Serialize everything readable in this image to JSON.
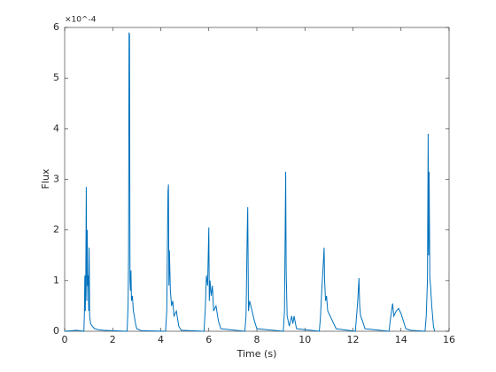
{
  "chart_data": {
    "type": "line",
    "xlabel": "Time (s)",
    "ylabel": "Flux",
    "y_exponent_label": "×10^-4",
    "x": [
      0,
      0.5,
      0.8,
      0.82,
      0.84,
      0.86,
      0.88,
      0.9,
      0.92,
      0.94,
      0.96,
      0.98,
      1.0,
      1.02,
      1.04,
      1.08,
      1.15,
      1.25,
      1.4,
      1.6,
      2.0,
      2.6,
      2.64,
      2.66,
      2.68,
      2.7,
      2.72,
      2.74,
      2.76,
      2.78,
      2.82,
      2.86,
      2.9,
      2.95,
      3.0,
      3.2,
      4.2,
      4.25,
      4.3,
      4.32,
      4.34,
      4.36,
      4.4,
      4.45,
      4.5,
      4.55,
      4.65,
      4.75,
      4.85,
      5.8,
      5.85,
      5.9,
      5.95,
      6.0,
      6.02,
      6.05,
      6.1,
      6.15,
      6.2,
      6.3,
      6.4,
      6.5,
      7.5,
      7.55,
      7.6,
      7.62,
      7.65,
      7.7,
      7.75,
      7.8,
      7.9,
      8.0,
      9.1,
      9.15,
      9.2,
      9.22,
      9.26,
      9.35,
      9.45,
      9.5,
      9.55,
      9.65,
      10.6,
      10.65,
      10.7,
      10.75,
      10.8,
      10.82,
      10.86,
      10.9,
      10.95,
      11.05,
      11.15,
      11.3,
      12.1,
      12.15,
      12.2,
      12.25,
      12.28,
      12.32,
      12.4,
      12.5,
      13.5,
      13.55,
      13.65,
      13.7,
      13.8,
      13.9,
      14.0,
      14.1,
      14.2,
      14.4,
      15.0,
      15.05,
      15.1,
      15.13,
      15.15,
      15.17,
      15.2,
      15.23,
      15.28,
      15.35,
      15.4
    ],
    "values": [
      0,
      0.02,
      0,
      0.3,
      1.1,
      0.4,
      1.15,
      2.85,
      0.6,
      2.0,
      0.9,
      1.1,
      0.4,
      1.65,
      0.3,
      0.15,
      0.1,
      0.05,
      0.03,
      0.02,
      0.01,
      0,
      0.5,
      1.5,
      5.9,
      5.85,
      1.0,
      0.8,
      1.2,
      0.6,
      0.7,
      0.4,
      0.3,
      0.15,
      0.05,
      0.01,
      0,
      0.4,
      2.75,
      2.9,
      0.9,
      1.6,
      0.8,
      0.5,
      0.6,
      0.3,
      0.4,
      0.1,
      0.02,
      0,
      0.4,
      1.1,
      0.9,
      2.05,
      0.6,
      1.0,
      0.7,
      0.9,
      0.4,
      0.5,
      0.2,
      0.05,
      0,
      0.3,
      2.0,
      2.45,
      0.4,
      0.6,
      0.5,
      0.4,
      0.2,
      0.05,
      0,
      0.4,
      3.15,
      1.2,
      0.3,
      0.1,
      0.3,
      0.15,
      0.3,
      0.05,
      0,
      0.3,
      0.8,
      1.2,
      1.65,
      1.0,
      0.6,
      0.7,
      0.4,
      0.3,
      0.2,
      0.05,
      0,
      0.3,
      0.6,
      1.05,
      0.5,
      0.3,
      0.2,
      0.05,
      0,
      0.2,
      0.55,
      0.3,
      0.4,
      0.45,
      0.35,
      0.2,
      0.05,
      0.02,
      0,
      0.3,
      1.0,
      3.9,
      1.5,
      3.15,
      1.05,
      0.9,
      0.5,
      0.1,
      0
    ],
    "color": "#0072bd",
    "xlim": [
      0,
      16
    ],
    "xticks": [
      0,
      2,
      4,
      6,
      8,
      10,
      12,
      14,
      16
    ],
    "ylim": [
      0,
      6
    ],
    "yticks": [
      0,
      1,
      2,
      3,
      4,
      5,
      6
    ],
    "grid": false
  }
}
